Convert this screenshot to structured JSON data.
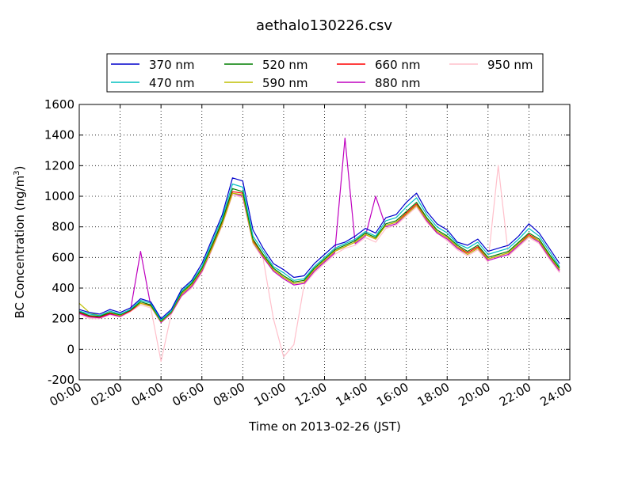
{
  "chart_data": {
    "type": "line",
    "title": "aethalo130226.csv",
    "xlabel": "Time on 2013-02-26 (JST)",
    "ylabel": "BC Concentration (ng/m",
    "ylabel_sup": "3",
    "ylabel_end": ")",
    "xlim": [
      "00:00",
      "24:00"
    ],
    "ylim": [
      -200,
      1600
    ],
    "grid": true,
    "legend_position": "top",
    "x_ticks": [
      "00:00",
      "02:00",
      "04:00",
      "06:00",
      "08:00",
      "10:00",
      "12:00",
      "14:00",
      "16:00",
      "18:00",
      "20:00",
      "22:00",
      "24:00"
    ],
    "y_ticks": [
      "-200",
      "0",
      "200",
      "400",
      "600",
      "800",
      "1000",
      "1200",
      "1400",
      "1600"
    ],
    "x_hours": [
      0,
      0.5,
      1,
      1.5,
      2,
      2.5,
      3,
      3.5,
      4,
      4.5,
      5,
      5.5,
      6,
      6.5,
      7,
      7.5,
      8,
      8.5,
      9,
      9.5,
      10,
      10.5,
      11,
      11.5,
      12,
      12.5,
      13,
      13.5,
      14,
      14.5,
      15,
      15.5,
      16,
      16.5,
      17,
      17.5,
      18,
      18.5,
      19,
      19.5,
      20,
      20.5,
      21,
      21.5,
      22,
      22.5,
      23,
      23.5
    ],
    "series": [
      {
        "name": "370 nm",
        "color": "#0000cc",
        "values": [
          260,
          240,
          230,
          260,
          240,
          270,
          330,
          310,
          200,
          260,
          390,
          450,
          560,
          720,
          880,
          1120,
          1100,
          780,
          660,
          560,
          520,
          470,
          480,
          560,
          620,
          680,
          700,
          740,
          790,
          760,
          860,
          880,
          960,
          1020,
          900,
          820,
          780,
          700,
          680,
          720,
          640,
          660,
          680,
          740,
          820,
          760,
          660,
          560
        ]
      },
      {
        "name": "470 nm",
        "color": "#00bfbf",
        "values": [
          250,
          230,
          220,
          250,
          230,
          260,
          320,
          300,
          190,
          250,
          380,
          440,
          540,
          700,
          860,
          1080,
          1060,
          740,
          640,
          540,
          500,
          450,
          460,
          540,
          600,
          660,
          690,
          720,
          770,
          740,
          840,
          860,
          930,
          990,
          880,
          800,
          760,
          690,
          660,
          700,
          620,
          640,
          660,
          720,
          790,
          740,
          640,
          540
        ]
      },
      {
        "name": "520 nm",
        "color": "#007f00",
        "values": [
          245,
          220,
          215,
          240,
          225,
          255,
          310,
          290,
          185,
          245,
          370,
          430,
          530,
          680,
          840,
          1050,
          1030,
          720,
          620,
          530,
          480,
          440,
          450,
          530,
          590,
          650,
          680,
          710,
          760,
          730,
          820,
          840,
          900,
          960,
          860,
          780,
          740,
          680,
          640,
          680,
          600,
          620,
          640,
          700,
          760,
          720,
          620,
          530
        ]
      },
      {
        "name": "590 nm",
        "color": "#bfbf00",
        "values": [
          300,
          240,
          220,
          240,
          220,
          260,
          300,
          280,
          180,
          240,
          360,
          420,
          520,
          660,
          820,
          1020,
          1010,
          700,
          610,
          520,
          470,
          430,
          440,
          520,
          580,
          640,
          670,
          700,
          750,
          720,
          810,
          830,
          880,
          940,
          850,
          770,
          730,
          670,
          620,
          660,
          590,
          610,
          630,
          690,
          740,
          710,
          610,
          520
        ]
      },
      {
        "name": "660 nm",
        "color": "#ff0000",
        "values": [
          240,
          215,
          210,
          235,
          220,
          250,
          300,
          285,
          180,
          240,
          360,
          420,
          520,
          670,
          830,
          1030,
          1020,
          710,
          610,
          520,
          470,
          430,
          440,
          520,
          580,
          640,
          670,
          700,
          750,
          720,
          810,
          830,
          890,
          950,
          850,
          770,
          730,
          670,
          630,
          670,
          590,
          610,
          630,
          690,
          750,
          710,
          610,
          520
        ]
      },
      {
        "name": "880 nm",
        "color": "#bf00bf",
        "values": [
          235,
          210,
          205,
          230,
          215,
          250,
          640,
          280,
          175,
          235,
          350,
          410,
          510,
          660,
          820,
          1020,
          1000,
          700,
          600,
          510,
          460,
          420,
          430,
          510,
          570,
          630,
          1380,
          690,
          740,
          1000,
          800,
          820,
          880,
          940,
          840,
          760,
          720,
          660,
          620,
          660,
          580,
          600,
          620,
          680,
          740,
          700,
          600,
          510
        ]
      },
      {
        "name": "950 nm",
        "color": "#ffc0cb",
        "values": [
          230,
          200,
          200,
          225,
          210,
          245,
          290,
          270,
          -80,
          230,
          345,
          400,
          500,
          650,
          810,
          1010,
          990,
          690,
          590,
          200,
          -50,
          30,
          420,
          500,
          560,
          620,
          660,
          680,
          730,
          700,
          790,
          810,
          870,
          930,
          830,
          760,
          710,
          650,
          610,
          650,
          570,
          1200,
          610,
          670,
          730,
          690,
          590,
          500
        ]
      }
    ]
  }
}
